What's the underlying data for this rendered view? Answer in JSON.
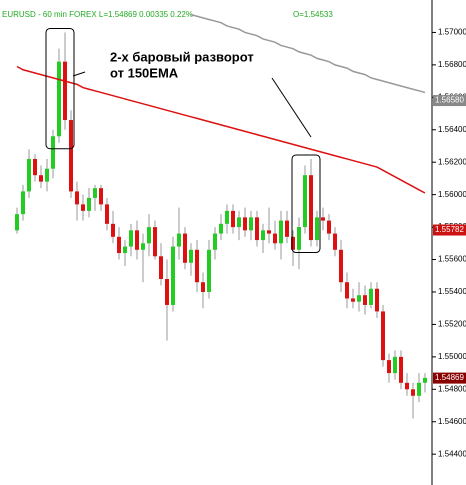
{
  "chart_data": {
    "type": "candlestick",
    "header": "EURUSD - 60 min  FOREX  L=1.54869  0.00335  0.22%",
    "header_right": "O=1.54533",
    "annotation": [
      "2-х баровый разворот",
      "от 150EMA"
    ],
    "ylim": [
      1.5421,
      1.572
    ],
    "yticks": [
      {
        "value": 1.57,
        "label": "1.57000"
      },
      {
        "value": 1.568,
        "label": "1.56800"
      },
      {
        "value": 1.566,
        "label": "1.56600"
      },
      {
        "value": 1.564,
        "label": "1.56400"
      },
      {
        "value": 1.562,
        "label": "1.56200"
      },
      {
        "value": 1.56,
        "label": "1.56000"
      },
      {
        "value": 1.558,
        "label": "1.55800"
      },
      {
        "value": 1.556,
        "label": "1.55600"
      },
      {
        "value": 1.554,
        "label": "1.55400"
      },
      {
        "value": 1.552,
        "label": "1.55200"
      },
      {
        "value": 1.55,
        "label": "1.55000"
      },
      {
        "value": 1.548,
        "label": "1.54800"
      },
      {
        "value": 1.546,
        "label": "1.54600"
      },
      {
        "value": 1.544,
        "label": "1.54400"
      }
    ],
    "up_color": "#22cc22",
    "down_color": "#dd1111",
    "open": [
      1.5578,
      1.5588,
      1.5602,
      1.5622,
      1.5612,
      1.5608,
      1.5616,
      1.5636,
      1.5682,
      1.5646,
      1.5602,
      1.5594,
      1.559,
      1.5598,
      1.5604,
      1.5594,
      1.5582,
      1.5574,
      1.5564,
      1.5568,
      1.5578,
      1.5566,
      1.557,
      1.558,
      1.5562,
      1.5548,
      1.5532,
      1.5568,
      1.5576,
      1.5558,
      1.5566,
      1.5546,
      1.554,
      1.5566,
      1.5576,
      1.5582,
      1.559,
      1.558,
      1.5586,
      1.5578,
      1.5586,
      1.5572,
      1.5578,
      1.5576,
      1.557,
      1.5584,
      1.5574,
      1.5566,
      1.558,
      1.5612,
      1.5572,
      1.5586,
      1.5584,
      1.5576,
      1.5566,
      1.5546,
      1.5536,
      1.5534,
      1.5538,
      1.5532,
      1.5542,
      1.5528,
      1.5498,
      1.549,
      1.55,
      1.5484,
      1.548,
      1.5476,
      1.5484
    ],
    "high": [
      1.5592,
      1.5606,
      1.5628,
      1.5625,
      1.5618,
      1.5622,
      1.564,
      1.569,
      1.57,
      1.5652,
      1.5608,
      1.56,
      1.5604,
      1.5606,
      1.5606,
      1.5598,
      1.559,
      1.558,
      1.5572,
      1.5582,
      1.5584,
      1.5576,
      1.5588,
      1.5584,
      1.557,
      1.556,
      1.5574,
      1.5592,
      1.558,
      1.557,
      1.5572,
      1.5552,
      1.5572,
      1.558,
      1.5588,
      1.5594,
      1.5594,
      1.559,
      1.5592,
      1.559,
      1.559,
      1.5582,
      1.5592,
      1.5584,
      1.559,
      1.559,
      1.5578,
      1.5586,
      1.5618,
      1.5622,
      1.559,
      1.5592,
      1.5588,
      1.558,
      1.5572,
      1.5552,
      1.5542,
      1.5546,
      1.5544,
      1.5546,
      1.5546,
      1.5532,
      1.5502,
      1.5504,
      1.5504,
      1.549,
      1.5484,
      1.549,
      1.549
    ],
    "low": [
      1.5576,
      1.5584,
      1.5598,
      1.5608,
      1.5604,
      1.5602,
      1.561,
      1.5632,
      1.564,
      1.5598,
      1.5584,
      1.5584,
      1.5586,
      1.559,
      1.559,
      1.5578,
      1.557,
      1.556,
      1.5556,
      1.5562,
      1.556,
      1.5546,
      1.5562,
      1.556,
      1.5544,
      1.551,
      1.5528,
      1.556,
      1.5554,
      1.555,
      1.554,
      1.553,
      1.5536,
      1.556,
      1.5572,
      1.5576,
      1.5576,
      1.5572,
      1.5574,
      1.5572,
      1.5568,
      1.5564,
      1.557,
      1.5566,
      1.556,
      1.557,
      1.5556,
      1.5554,
      1.5576,
      1.5568,
      1.5568,
      1.5578,
      1.5572,
      1.5562,
      1.554,
      1.553,
      1.553,
      1.5528,
      1.5526,
      1.553,
      1.5524,
      1.5494,
      1.5484,
      1.5486,
      1.548,
      1.5476,
      1.5462,
      1.5472,
      1.5478
    ],
    "close": [
      1.5588,
      1.5602,
      1.5622,
      1.5612,
      1.5608,
      1.5616,
      1.5636,
      1.5682,
      1.5646,
      1.5602,
      1.5594,
      1.559,
      1.5598,
      1.5604,
      1.5594,
      1.5582,
      1.5574,
      1.5564,
      1.5568,
      1.5578,
      1.5566,
      1.557,
      1.558,
      1.5562,
      1.5548,
      1.5532,
      1.5568,
      1.5576,
      1.5558,
      1.5566,
      1.5546,
      1.554,
      1.5566,
      1.5576,
      1.5582,
      1.559,
      1.558,
      1.5586,
      1.5578,
      1.5586,
      1.5572,
      1.5578,
      1.5576,
      1.557,
      1.5584,
      1.5574,
      1.5566,
      1.558,
      1.5612,
      1.5572,
      1.5586,
      1.5584,
      1.5576,
      1.5566,
      1.5546,
      1.5536,
      1.5534,
      1.5538,
      1.5532,
      1.5542,
      1.5528,
      1.5498,
      1.549,
      1.55,
      1.5484,
      1.548,
      1.5476,
      1.5484,
      1.5487
    ],
    "lines": [
      {
        "color": "#dd1111",
        "values": [
          1.5679,
          1.5677,
          1.5676,
          1.5675,
          1.5674,
          1.5673,
          1.5672,
          1.5671,
          1.567,
          1.5669,
          1.5668,
          1.5666,
          1.5665,
          1.5664,
          1.5663,
          1.5662,
          1.5661,
          1.566,
          1.5659,
          1.5658,
          1.5657,
          1.5656,
          1.5655,
          1.5654,
          1.5653,
          1.5652,
          1.5651,
          1.565,
          1.5649,
          1.5648,
          1.5647,
          1.5646,
          1.5645,
          1.5644,
          1.5643,
          1.5642,
          1.5641,
          1.564,
          1.5639,
          1.5638,
          1.5637,
          1.5636,
          1.5635,
          1.5634,
          1.5633,
          1.5632,
          1.5631,
          1.563,
          1.5629,
          1.5628,
          1.5627,
          1.5626,
          1.5625,
          1.5624,
          1.5623,
          1.5622,
          1.5621,
          1.562,
          1.5619,
          1.5618,
          1.5617,
          1.5615,
          1.5613,
          1.5611,
          1.5609,
          1.5607,
          1.5605,
          1.5603,
          1.5601
        ]
      },
      {
        "color": "#999999",
        "values": [
          null,
          null,
          null,
          null,
          null,
          null,
          null,
          null,
          null,
          null,
          null,
          null,
          null,
          null,
          null,
          null,
          null,
          null,
          null,
          null,
          null,
          null,
          null,
          null,
          null,
          null,
          null,
          null,
          null,
          1.5711,
          1.571,
          1.5709,
          1.5708,
          1.5707,
          1.5706,
          1.5704,
          1.5703,
          1.5702,
          1.57,
          1.5699,
          1.5698,
          1.5696,
          1.5695,
          1.5694,
          1.5692,
          1.5691,
          1.569,
          1.5688,
          1.5687,
          1.5686,
          1.5684,
          1.5683,
          1.5682,
          1.568,
          1.5679,
          1.5678,
          1.5676,
          1.5675,
          1.5674,
          1.5672,
          1.5671,
          1.567,
          1.5669,
          1.5668,
          1.5667,
          1.5666,
          1.5665,
          1.5664,
          1.5663
        ]
      }
    ],
    "price_labels": [
      {
        "value": 1.5658,
        "label": "1.56580",
        "color": "#888888"
      },
      {
        "value": 1.55782,
        "label": "1.55782",
        "color": "#cc1111"
      },
      {
        "value": 1.54869,
        "label": "1.54869",
        "color": "#880000"
      }
    ]
  }
}
